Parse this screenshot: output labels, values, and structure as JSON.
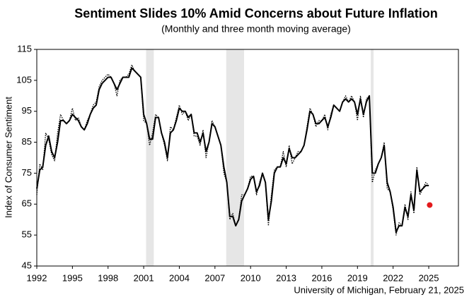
{
  "chart_data": {
    "type": "line",
    "title": "Sentiment Slides 10% Amid Concerns about Future Inflation",
    "subtitle": "(Monthly and three month moving average)",
    "y_label": "Index of Consumer Sentiment",
    "source": "University of Michigan, February 21, 2025",
    "xlim": [
      1992,
      2027.5
    ],
    "ylim": [
      45,
      115
    ],
    "xticks": [
      1992,
      1995,
      1998,
      2001,
      2004,
      2007,
      2010,
      2013,
      2016,
      2019,
      2022,
      2025
    ],
    "yticks": [
      45,
      55,
      65,
      75,
      85,
      95,
      105,
      115
    ],
    "shaded_ranges": [
      [
        2001.2,
        2001.85
      ],
      [
        2007.95,
        2009.45
      ],
      [
        2020.12,
        2020.35
      ]
    ],
    "shade_color": "#e6e6e6",
    "x": [
      1992,
      1992.25,
      1992.5,
      1992.75,
      1993,
      1993.25,
      1993.5,
      1993.75,
      1994,
      1994.25,
      1994.5,
      1994.75,
      1995,
      1995.25,
      1995.5,
      1995.75,
      1996,
      1996.25,
      1996.5,
      1996.75,
      1997,
      1997.25,
      1997.5,
      1997.75,
      1998,
      1998.25,
      1998.5,
      1998.75,
      1999,
      1999.25,
      1999.5,
      1999.75,
      2000,
      2000.25,
      2000.5,
      2000.75,
      2001,
      2001.25,
      2001.5,
      2001.75,
      2002,
      2002.25,
      2002.5,
      2002.75,
      2003,
      2003.25,
      2003.5,
      2003.75,
      2004,
      2004.25,
      2004.5,
      2004.75,
      2005,
      2005.25,
      2005.5,
      2005.75,
      2006,
      2006.25,
      2006.5,
      2006.75,
      2007,
      2007.25,
      2007.5,
      2007.75,
      2008,
      2008.25,
      2008.5,
      2008.75,
      2009,
      2009.25,
      2009.5,
      2009.75,
      2010,
      2010.25,
      2010.5,
      2010.75,
      2011,
      2011.25,
      2011.5,
      2011.75,
      2012,
      2012.25,
      2012.5,
      2012.75,
      2013,
      2013.25,
      2013.5,
      2013.75,
      2014,
      2014.25,
      2014.5,
      2014.75,
      2015,
      2015.25,
      2015.5,
      2015.75,
      2016,
      2016.25,
      2016.5,
      2016.75,
      2017,
      2017.25,
      2017.5,
      2017.75,
      2018,
      2018.25,
      2018.5,
      2018.75,
      2019,
      2019.25,
      2019.5,
      2019.75,
      2020,
      2020.25,
      2020.5,
      2020.75,
      2021,
      2021.25,
      2021.5,
      2021.75,
      2022,
      2022.25,
      2022.5,
      2022.75,
      2023,
      2023.25,
      2023.5,
      2023.75,
      2024,
      2024.25,
      2024.5,
      2024.75,
      2025
    ],
    "series": [
      {
        "style": "dotted",
        "color": "#000000",
        "values": [
          68,
          78,
          76,
          88,
          86,
          81,
          79,
          88,
          94,
          92,
          91,
          92,
          96,
          92,
          93,
          90,
          89,
          92,
          94,
          97,
          98,
          103,
          105,
          106,
          107,
          106,
          104,
          100,
          105,
          106,
          106,
          107,
          110,
          108,
          107,
          106,
          92,
          91,
          84,
          88,
          94,
          93,
          88,
          84,
          79,
          90,
          89,
          93,
          97,
          94,
          95,
          92,
          94,
          87,
          87,
          84,
          89,
          80,
          85,
          92,
          90,
          87,
          84,
          75,
          72,
          60,
          62,
          58,
          60,
          68,
          68,
          70,
          74,
          74,
          68,
          72,
          75,
          72,
          58,
          68,
          76,
          77,
          77,
          82,
          77,
          84,
          78,
          80,
          82,
          82,
          84,
          90,
          96,
          94,
          90,
          92,
          92,
          94,
          89,
          94,
          97,
          96,
          95,
          98,
          100,
          98,
          100,
          98,
          92,
          100,
          93,
          99,
          100,
          72,
          76,
          78,
          80,
          85,
          70,
          69,
          63,
          55,
          59,
          58,
          65,
          60,
          69,
          62,
          77,
          68,
          70,
          72,
          71
        ]
      },
      {
        "style": "solid",
        "color": "#000000",
        "values": [
          70,
          76,
          77,
          84,
          87,
          82,
          80,
          85,
          92,
          92,
          91,
          92,
          94,
          93,
          92,
          90,
          89,
          91,
          94,
          96,
          97,
          102,
          104,
          105,
          106,
          106,
          104,
          102,
          104,
          106,
          106,
          106,
          109,
          108,
          107,
          106,
          94,
          91,
          86,
          86,
          93,
          93,
          88,
          85,
          80,
          88,
          89,
          92,
          96,
          95,
          95,
          93,
          94,
          88,
          88,
          85,
          88,
          82,
          85,
          91,
          90,
          87,
          84,
          77,
          72,
          61,
          61,
          58,
          60,
          66,
          68,
          70,
          73,
          74,
          69,
          71,
          75,
          72,
          60,
          66,
          75,
          77,
          77,
          80,
          78,
          83,
          80,
          80,
          81,
          82,
          84,
          89,
          95,
          94,
          91,
          91,
          92,
          93,
          90,
          93,
          97,
          96,
          95,
          98,
          99,
          98,
          99,
          98,
          94,
          99,
          94,
          98,
          100,
          75,
          75,
          78,
          80,
          84,
          72,
          69,
          64,
          56,
          58,
          58,
          64,
          61,
          68,
          63,
          76,
          69,
          70,
          71,
          71
        ]
      },
      {
        "style": "point",
        "color": "#e31a1c",
        "x": [
          2025.08
        ],
        "values": [
          64.7
        ]
      }
    ]
  }
}
